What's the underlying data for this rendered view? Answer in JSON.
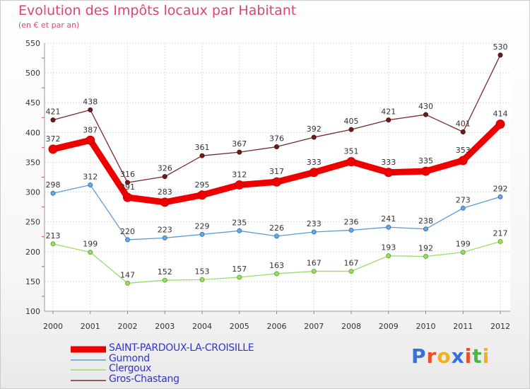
{
  "header": {
    "title": "Evolution des Impôts locaux par Habitant",
    "subtitle": "(en € et par an)"
  },
  "logo": {
    "text": "Proxiti",
    "colors": [
      "#3a6fd8",
      "#e8502a",
      "#f0b020",
      "#3a6fd8",
      "#e8502a",
      "#48b848",
      "#f0b020"
    ]
  },
  "chart_data": {
    "type": "line",
    "title": "Evolution des Impôts locaux par Habitant",
    "subtitle": "(en € et par an)",
    "xlabel": "",
    "ylabel": "",
    "ylim": [
      100,
      550
    ],
    "yticks": [
      100,
      150,
      200,
      250,
      300,
      350,
      400,
      450,
      500,
      550
    ],
    "x": [
      "2000",
      "2001",
      "2002",
      "2003",
      "2004",
      "2005",
      "2006",
      "2007",
      "2008",
      "2009",
      "2010",
      "2011",
      "2012"
    ],
    "grid": true,
    "legend_position": "bottom-left",
    "series": [
      {
        "name": "SAINT-PARDOUX-LA-CROISILLE",
        "color": "#ee0000",
        "values": [
          372,
          387,
          291,
          283,
          295,
          312,
          317,
          333,
          351,
          333,
          335,
          353,
          414
        ]
      },
      {
        "name": "Gumond",
        "color": "#5b9bd5",
        "values": [
          298,
          312,
          220,
          223,
          229,
          235,
          226,
          233,
          236,
          241,
          238,
          273,
          292
        ]
      },
      {
        "name": "Clergoux",
        "color": "#99dd66",
        "values": [
          213,
          199,
          147,
          152,
          153,
          157,
          163,
          167,
          167,
          193,
          192,
          199,
          217
        ]
      },
      {
        "name": "Gros-Chastang",
        "color": "#7a2a2a",
        "values": [
          421,
          438,
          316,
          326,
          361,
          367,
          376,
          392,
          405,
          421,
          430,
          401,
          530
        ]
      }
    ]
  }
}
